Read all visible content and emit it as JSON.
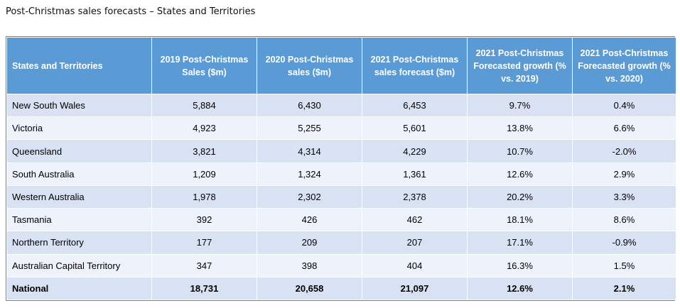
{
  "title": "Post-Christmas sales forecasts – States and Territories",
  "columns": [
    "States and Territories",
    "2019 Post-Christmas Sales ($m)",
    "2020 Post-Christmas sales ($m)",
    "2021 Post-Christmas sales forecast ($m)",
    "2021 Post-Christmas Forecasted growth (% vs. 2019)",
    "2021 Post-Christmas Forecasted growth (% vs. 2020)"
  ],
  "rows": [
    [
      "New South Wales",
      "5,884",
      "6,430",
      "6,453",
      "9.7%",
      "0.4%"
    ],
    [
      "Victoria",
      "4,923",
      "5,255",
      "5,601",
      "13.8%",
      "6.6%"
    ],
    [
      "Queensland",
      "3,821",
      "4,314",
      "4,229",
      "10.7%",
      "-2.0%"
    ],
    [
      "South Australia",
      "1,209",
      "1,324",
      "1,361",
      "12.6%",
      "2.9%"
    ],
    [
      "Western Australia",
      "1,978",
      "2,302",
      "2,378",
      "20.2%",
      "3.3%"
    ],
    [
      "Tasmania",
      "392",
      "426",
      "462",
      "18.1%",
      "8.6%"
    ],
    [
      "Northern Territory",
      "177",
      "209",
      "207",
      "17.1%",
      "-0.9%"
    ],
    [
      "Australian Capital Territory",
      "347",
      "398",
      "404",
      "16.3%",
      "1.5%"
    ]
  ],
  "total": [
    "National",
    "18,731",
    "20,658",
    "21,097",
    "12.6%",
    "2.1%"
  ],
  "colors": {
    "header": "#5b9bd5",
    "row_dark": "#d9e2f3",
    "row_light": "#eef2fa"
  }
}
